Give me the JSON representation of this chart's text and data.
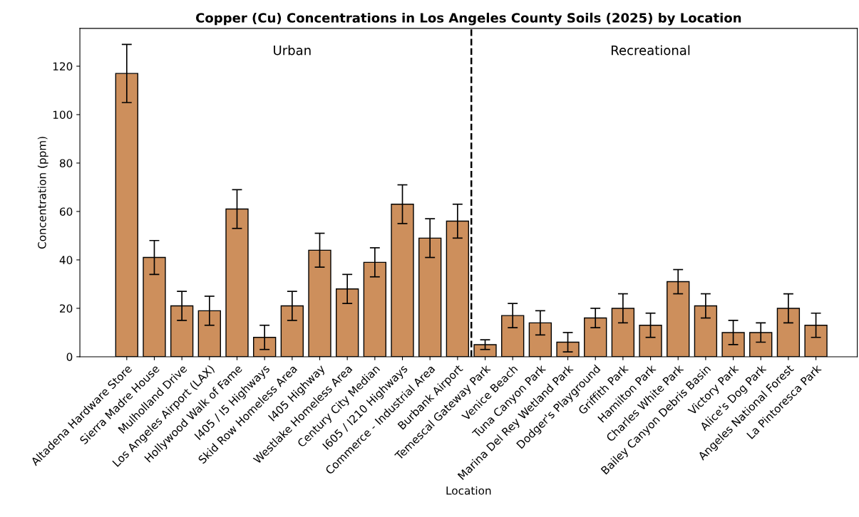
{
  "chart_data": {
    "type": "bar",
    "title": "Copper (Cu) Concentrations in Los Angeles County Soils (2025) by Location",
    "xlabel": "Location",
    "ylabel": "Concentration (ppm)",
    "categories": [
      "Altadena Hardware Store",
      "Sierra Madre House",
      "Mulholland Drive",
      "Los Angeles Airport (LAX)",
      "Hollywood Walk of Fame",
      "I405 / I5 Highways",
      "Skid Row Homeless Area",
      "I405 Highway",
      "Westlake Homeless Area",
      "Century City Median",
      "I605 / I210 Highways",
      "Commerce - Industrial Area",
      "Burbank Airport",
      "Temescal Gateway Park",
      "Venice Beach",
      "Tuna Canyon Park",
      "Marina Del Rey Wetland Park",
      "Dodger's Playground",
      "Griffith Park",
      "Hamilton Park",
      "Charles White Park",
      "Bailey Canyon Debris Basin",
      "Victory Park",
      "Alice's Dog Park",
      "Angeles National Forest",
      "La Pintoresca Park"
    ],
    "values": [
      117,
      41,
      21,
      19,
      61,
      8,
      21,
      44,
      28,
      39,
      63,
      49,
      56,
      5,
      17,
      14,
      6,
      16,
      20,
      13,
      31,
      21,
      10,
      10,
      20,
      13
    ],
    "errors": [
      12,
      7,
      6,
      6,
      8,
      5,
      6,
      7,
      6,
      6,
      8,
      8,
      7,
      2,
      5,
      5,
      4,
      4,
      6,
      5,
      5,
      5,
      5,
      4,
      6,
      5
    ],
    "color": "#cd8f5c",
    "ylim": [
      0,
      135.6
    ],
    "yticks": [
      0,
      20,
      40,
      60,
      80,
      100,
      120
    ],
    "grid": false,
    "legend": false,
    "annotations": [
      "Urban",
      "Recreational"
    ]
  }
}
